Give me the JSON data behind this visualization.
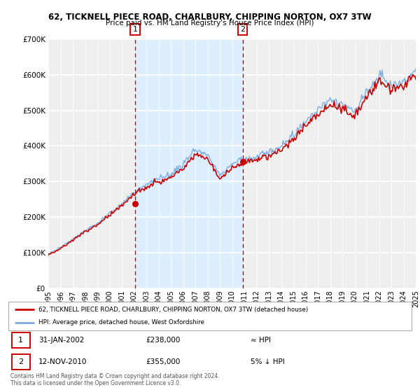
{
  "title1": "62, TICKNELL PIECE ROAD, CHARLBURY, CHIPPING NORTON, OX7 3TW",
  "title2": "Price paid vs. HM Land Registry's House Price Index (HPI)",
  "red_label": "62, TICKNELL PIECE ROAD, CHARLBURY, CHIPPING NORTON, OX7 3TW (detached house)",
  "blue_label": "HPI: Average price, detached house, West Oxfordshire",
  "annotation1_date": "31-JAN-2002",
  "annotation1_price": "£238,000",
  "annotation1_rel": "≈ HPI",
  "annotation2_date": "12-NOV-2010",
  "annotation2_price": "£355,000",
  "annotation2_rel": "5% ↓ HPI",
  "footer1": "Contains HM Land Registry data © Crown copyright and database right 2024.",
  "footer2": "This data is licensed under the Open Government Licence v3.0.",
  "red_color": "#cc0000",
  "blue_color": "#7aade0",
  "shade_color": "#ddeeff",
  "vline_color": "#cc0000",
  "ylim": [
    0,
    700000
  ],
  "yticks": [
    0,
    100000,
    200000,
    300000,
    400000,
    500000,
    600000,
    700000
  ],
  "ytick_labels": [
    "£0",
    "£100K",
    "£200K",
    "£300K",
    "£400K",
    "£500K",
    "£600K",
    "£700K"
  ],
  "box_color": "#cc0000",
  "marker1_x": 2002.08,
  "marker1_y": 238000,
  "marker2_x": 2010.87,
  "marker2_y": 355000,
  "vline1_x": 2002.08,
  "vline2_x": 2010.87,
  "xlim": [
    1995,
    2025
  ],
  "xticks": [
    1995,
    1996,
    1997,
    1998,
    1999,
    2000,
    2001,
    2002,
    2003,
    2004,
    2005,
    2006,
    2007,
    2008,
    2009,
    2010,
    2011,
    2012,
    2013,
    2014,
    2015,
    2016,
    2017,
    2018,
    2019,
    2020,
    2021,
    2022,
    2023,
    2024,
    2025
  ]
}
